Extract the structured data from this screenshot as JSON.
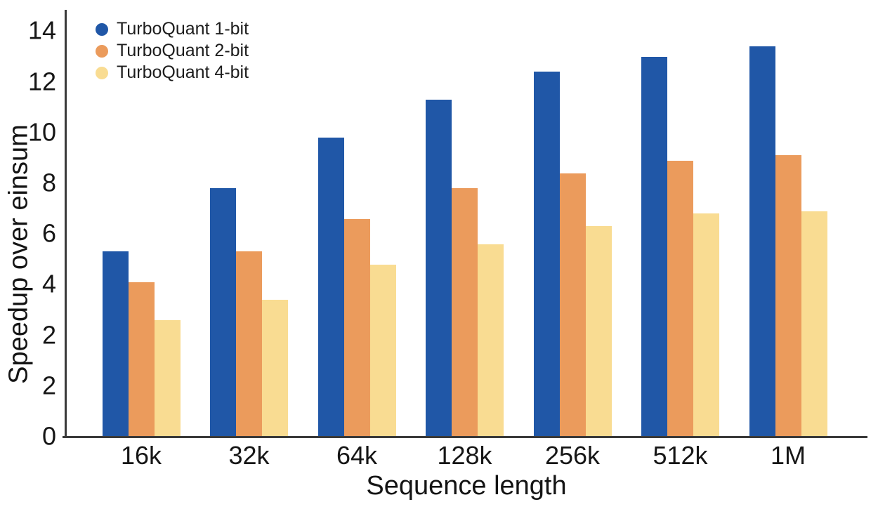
{
  "chart_data": {
    "type": "bar",
    "title": "",
    "xlabel": "Sequence length",
    "ylabel": "Speedup over einsum",
    "categories": [
      "16k",
      "32k",
      "64k",
      "128k",
      "256k",
      "512k",
      "1M"
    ],
    "series": [
      {
        "name": "TurboQuant 1-bit",
        "color": "#2057A7",
        "values": [
          5.3,
          7.8,
          9.8,
          11.3,
          12.4,
          13.0,
          13.4
        ]
      },
      {
        "name": "TurboQuant 2-bit",
        "color": "#EB9B5C",
        "values": [
          4.1,
          5.3,
          6.6,
          7.8,
          8.4,
          8.9,
          9.1
        ]
      },
      {
        "name": "TurboQuant 4-bit",
        "color": "#F9DC92",
        "values": [
          2.6,
          3.4,
          4.8,
          5.6,
          6.3,
          6.8,
          6.9
        ]
      }
    ],
    "y_tick_labels": [
      "0",
      "2",
      "2",
      "4",
      "6",
      "8",
      "10",
      "12",
      "14"
    ],
    "axis_note": "y-axis tick label '2' appears twice; 9 evenly spaced ticks from 0 to 14",
    "grid": false,
    "legend_position": "top-left",
    "axis_color": "#3A3A3A",
    "background_color": "#FFFFFF"
  }
}
